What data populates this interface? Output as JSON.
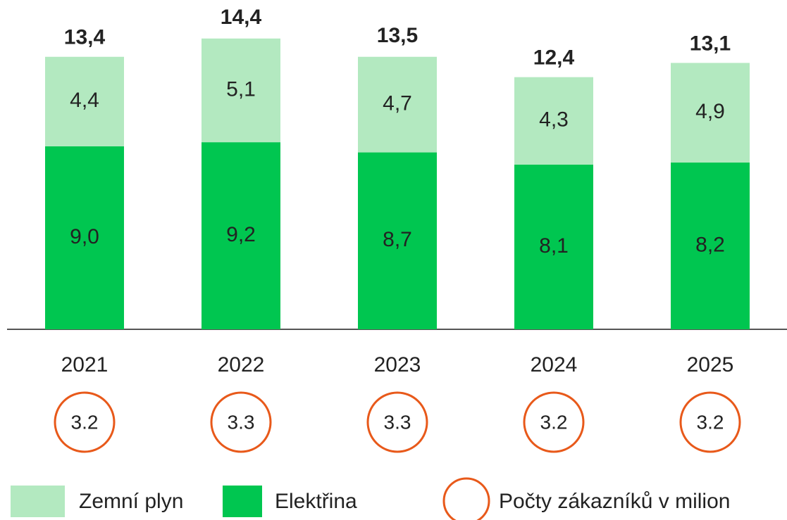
{
  "chart_data": {
    "type": "bar",
    "stacked": true,
    "categories": [
      "2021",
      "2022",
      "2023",
      "2024",
      "2025"
    ],
    "series": [
      {
        "name": "Elektřina",
        "color": "#00c650",
        "values": [
          9.0,
          9.2,
          8.7,
          8.1,
          8.2
        ],
        "value_labels": [
          "9,0",
          "9,2",
          "8,7",
          "8,1",
          "8,2"
        ]
      },
      {
        "name": "Zemní plyn",
        "color": "#b3e9c0",
        "values": [
          4.4,
          5.1,
          4.7,
          4.3,
          4.9
        ],
        "value_labels": [
          "4,4",
          "5,1",
          "4,7",
          "4,3",
          "4,9"
        ]
      }
    ],
    "totals": {
      "values": [
        13.4,
        14.4,
        13.5,
        12.4,
        13.1
      ],
      "value_labels": [
        "13,4",
        "14,4",
        "13,5",
        "12,4",
        "13,1"
      ]
    },
    "customers": {
      "name": "Počty zákazníků v milion",
      "color": "#e8591a",
      "values": [
        3.2,
        3.3,
        3.3,
        3.2,
        3.2
      ]
    }
  }
}
